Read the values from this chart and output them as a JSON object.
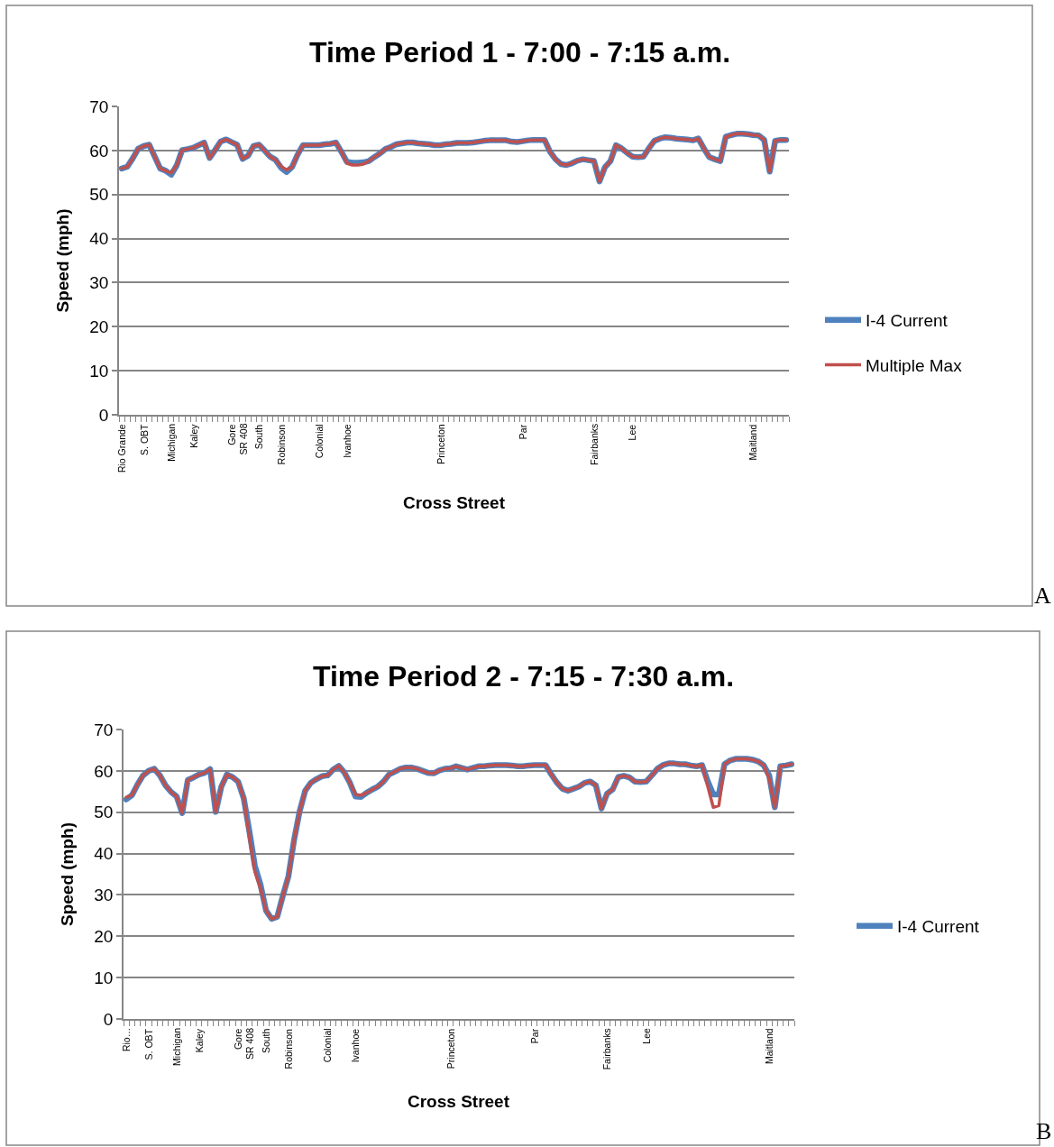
{
  "chart_data": [
    {
      "type": "line",
      "title": "Time Period 1 - 7:00 - 7:15 a.m.",
      "xlabel": "Cross Street",
      "ylabel": "Speed (mph)",
      "categories": [
        "Rio Grande",
        null,
        null,
        null,
        "S. OBT",
        null,
        null,
        null,
        null,
        "Michigan",
        null,
        null,
        null,
        "Kaley",
        null,
        null,
        null,
        null,
        null,
        null,
        "Gore",
        null,
        "SR 408",
        null,
        null,
        "South",
        null,
        null,
        null,
        "Robinson",
        null,
        null,
        null,
        null,
        null,
        null,
        "Colonial",
        null,
        null,
        null,
        null,
        "Ivanhoe",
        null,
        null,
        null,
        null,
        null,
        null,
        null,
        null,
        null,
        null,
        null,
        null,
        null,
        null,
        null,
        null,
        "Princeton",
        null,
        null,
        null,
        null,
        null,
        null,
        null,
        null,
        null,
        null,
        null,
        null,
        null,
        null,
        "Par",
        null,
        null,
        null,
        null,
        null,
        null,
        null,
        null,
        null,
        null,
        null,
        null,
        "Fairbanks",
        null,
        null,
        null,
        null,
        null,
        null,
        "Lee",
        null,
        null,
        null,
        null,
        null,
        null,
        null,
        null,
        null,
        null,
        null,
        null,
        null,
        null,
        null,
        null,
        null,
        null,
        null,
        null,
        null,
        "Maitland",
        null,
        null,
        null,
        null,
        null,
        null
      ],
      "series": [
        {
          "name": "I-4 Current",
          "color": "#4f81bd",
          "values": [
            55.9,
            56.3,
            58.2,
            60.4,
            61.0,
            61.3,
            58.6,
            55.9,
            55.4,
            54.5,
            56.6,
            60.1,
            60.3,
            60.6,
            61.2,
            61.8,
            58.3,
            60.1,
            62.0,
            62.5,
            61.9,
            61.3,
            58.1,
            58.8,
            61.0,
            61.3,
            60.0,
            58.6,
            57.9,
            56.1,
            55.1,
            56.2,
            59.0,
            61.2,
            61.2,
            61.2,
            61.2,
            61.4,
            61.5,
            61.8,
            59.7,
            57.4,
            57.2,
            57.2,
            57.3,
            57.6,
            58.5,
            59.3,
            60.3,
            60.8,
            61.4,
            61.6,
            61.8,
            61.8,
            61.6,
            61.5,
            61.4,
            61.2,
            61.2,
            61.4,
            61.5,
            61.7,
            61.7,
            61.7,
            61.8,
            62.0,
            62.2,
            62.3,
            62.3,
            62.3,
            62.3,
            62.0,
            61.9,
            62.1,
            62.3,
            62.4,
            62.4,
            62.4,
            59.7,
            58.0,
            56.9,
            56.7,
            57.1,
            57.7,
            58.0,
            57.8,
            57.6,
            53.0,
            56.2,
            57.6,
            61.2,
            60.5,
            59.5,
            58.6,
            58.5,
            58.6,
            60.5,
            62.2,
            62.7,
            63.0,
            62.9,
            62.7,
            62.6,
            62.5,
            62.3,
            62.7,
            60.5,
            58.5,
            58.0,
            57.6,
            63.1,
            63.5,
            63.8,
            63.8,
            63.7,
            63.5,
            63.4,
            62.4,
            55.2,
            62.2,
            62.4,
            62.4
          ]
        },
        {
          "name": "Multiple Max",
          "color": "#c0504d",
          "values": [
            55.9,
            56.3,
            58.2,
            60.4,
            61.0,
            61.3,
            58.6,
            55.9,
            55.4,
            54.9,
            56.6,
            60.1,
            60.3,
            60.6,
            61.2,
            61.8,
            58.3,
            60.1,
            62.0,
            62.5,
            61.9,
            61.3,
            58.1,
            58.8,
            61.0,
            61.3,
            60.0,
            58.6,
            57.9,
            56.4,
            55.6,
            56.2,
            59.0,
            61.2,
            61.2,
            61.2,
            61.2,
            61.4,
            61.5,
            61.8,
            59.7,
            57.1,
            56.7,
            56.7,
            56.9,
            57.6,
            58.5,
            59.3,
            60.3,
            60.8,
            61.4,
            61.6,
            61.8,
            61.8,
            61.6,
            61.5,
            61.4,
            61.2,
            61.2,
            61.4,
            61.5,
            61.7,
            61.7,
            61.7,
            61.8,
            62.0,
            62.2,
            62.3,
            62.3,
            62.3,
            62.3,
            62.0,
            61.9,
            62.1,
            62.3,
            62.4,
            62.4,
            62.4,
            59.7,
            58.0,
            56.9,
            56.7,
            57.1,
            57.7,
            58.0,
            57.8,
            57.6,
            53.0,
            56.2,
            57.6,
            61.2,
            60.5,
            59.5,
            58.6,
            58.5,
            58.6,
            60.5,
            62.2,
            62.7,
            63.0,
            62.9,
            62.7,
            62.6,
            62.5,
            62.3,
            62.7,
            60.5,
            58.5,
            58.0,
            57.6,
            63.1,
            63.5,
            63.8,
            63.8,
            63.7,
            63.5,
            63.4,
            62.4,
            55.2,
            62.2,
            62.4,
            62.4
          ]
        }
      ],
      "ylim": [
        0,
        70
      ],
      "yticks": [
        0,
        10,
        20,
        30,
        40,
        50,
        60,
        70
      ],
      "grid": "y",
      "legend": "right",
      "marker": "none",
      "annotations": [
        "A"
      ]
    },
    {
      "type": "line",
      "title": "Time Period 2 - 7:15 - 7:30 a.m.",
      "xlabel": "Cross Street",
      "ylabel": "Speed (mph)",
      "categories": [
        "Rio…",
        null,
        null,
        null,
        "S. OBT",
        null,
        null,
        null,
        null,
        "Michigan",
        null,
        null,
        null,
        "Kaley",
        null,
        null,
        null,
        null,
        null,
        null,
        "Gore",
        null,
        "SR 408",
        null,
        null,
        "South",
        null,
        null,
        null,
        "Robinson",
        null,
        null,
        null,
        null,
        null,
        null,
        "Colonial",
        null,
        null,
        null,
        null,
        "Ivanhoe",
        null,
        null,
        null,
        null,
        null,
        null,
        null,
        null,
        null,
        null,
        null,
        null,
        null,
        null,
        null,
        null,
        "Princeton",
        null,
        null,
        null,
        null,
        null,
        null,
        null,
        null,
        null,
        null,
        null,
        null,
        null,
        null,
        "Par",
        null,
        null,
        null,
        null,
        null,
        null,
        null,
        null,
        null,
        null,
        null,
        null,
        "Fairbanks",
        null,
        null,
        null,
        null,
        null,
        null,
        "Lee",
        null,
        null,
        null,
        null,
        null,
        null,
        null,
        null,
        null,
        null,
        null,
        null,
        null,
        null,
        null,
        null,
        null,
        null,
        null,
        null,
        null,
        "Maitland",
        null,
        null,
        null,
        null
      ],
      "series": [
        {
          "name": "I-4 Current",
          "color": "#4f81bd",
          "values": [
            53.1,
            54.1,
            56.7,
            58.9,
            60.0,
            60.5,
            58.9,
            56.5,
            54.9,
            53.8,
            49.8,
            57.8,
            58.4,
            59.1,
            59.5,
            60.4,
            50.1,
            56.2,
            59.1,
            58.5,
            57.4,
            53.4,
            45.5,
            37.0,
            32.5,
            26.2,
            24.2,
            24.7,
            29.8,
            34.5,
            43.2,
            50.2,
            55.2,
            57.1,
            58.0,
            58.7,
            58.9,
            60.3,
            61.2,
            59.6,
            57.1,
            53.8,
            53.7,
            54.7,
            55.5,
            56.2,
            57.4,
            59.1,
            59.8,
            60.5,
            60.8,
            60.8,
            60.5,
            60.0,
            59.5,
            59.4,
            60.1,
            60.5,
            60.6,
            61.1,
            60.7,
            60.3,
            60.7,
            61.1,
            61.1,
            61.3,
            61.4,
            61.4,
            61.4,
            61.3,
            61.1,
            61.1,
            61.3,
            61.4,
            61.4,
            61.4,
            59.2,
            57.2,
            55.7,
            55.2,
            55.7,
            56.2,
            57.1,
            57.4,
            56.5,
            50.9,
            54.5,
            55.5,
            58.5,
            58.8,
            58.4,
            57.4,
            57.3,
            57.4,
            58.9,
            60.5,
            61.4,
            61.8,
            61.8,
            61.6,
            61.6,
            61.3,
            61.1,
            61.4,
            57.5,
            54.3,
            54.3,
            61.6,
            62.5,
            62.9,
            62.9,
            62.9,
            62.7,
            62.3,
            61.4,
            58.9,
            51.2,
            61.1,
            61.3,
            61.6
          ]
        },
        {
          "color": "#c0504d",
          "values": [
            53.6,
            54.1,
            56.7,
            58.9,
            60.0,
            60.5,
            58.9,
            56.5,
            54.9,
            53.8,
            49.8,
            57.8,
            58.4,
            59.1,
            59.5,
            60.4,
            50.1,
            56.2,
            59.1,
            58.5,
            57.4,
            53.4,
            44.0,
            35.6,
            31.6,
            26.2,
            24.2,
            24.7,
            29.8,
            34.5,
            43.2,
            50.2,
            55.2,
            57.1,
            58.0,
            58.7,
            58.9,
            60.3,
            61.2,
            59.6,
            57.1,
            54.3,
            54.1,
            54.7,
            55.5,
            56.2,
            57.4,
            59.1,
            59.8,
            60.5,
            60.8,
            60.8,
            60.5,
            60.0,
            59.5,
            59.4,
            60.1,
            60.5,
            60.6,
            61.1,
            60.7,
            60.3,
            60.7,
            61.1,
            61.1,
            61.3,
            61.4,
            61.4,
            61.4,
            61.3,
            61.1,
            61.1,
            61.3,
            61.4,
            61.4,
            61.4,
            59.2,
            57.2,
            55.7,
            55.2,
            55.7,
            56.2,
            57.1,
            57.4,
            56.5,
            50.9,
            54.5,
            55.5,
            58.5,
            58.8,
            58.4,
            57.4,
            57.3,
            57.4,
            58.9,
            60.5,
            61.4,
            61.8,
            61.8,
            61.6,
            61.6,
            61.3,
            61.1,
            61.4,
            56.3,
            51.2,
            51.6,
            61.6,
            62.5,
            62.9,
            62.9,
            62.9,
            62.7,
            62.3,
            61.4,
            58.1,
            51.2,
            61.1,
            61.3,
            61.6
          ]
        }
      ],
      "ylim": [
        0,
        70
      ],
      "yticks": [
        0,
        10,
        20,
        30,
        40,
        50,
        60,
        70
      ],
      "grid": "y",
      "legend": "right",
      "marker": "none",
      "annotations": [
        "B"
      ]
    }
  ]
}
